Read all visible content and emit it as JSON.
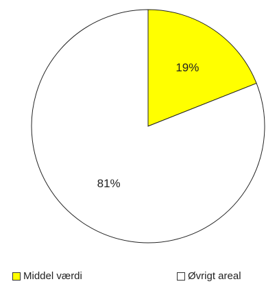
{
  "chart_data": {
    "type": "pie",
    "slices": [
      {
        "label": "Middel værdi",
        "value": 19,
        "display": "19%",
        "color": "#ffff00"
      },
      {
        "label": "Øvrigt areal",
        "value": 81,
        "display": "81%",
        "color": "#ffffff"
      }
    ],
    "start_angle_deg": 0,
    "direction": "clockwise",
    "legend_position": "bottom",
    "title": ""
  }
}
